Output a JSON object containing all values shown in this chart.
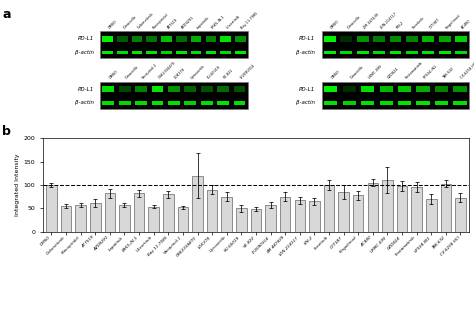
{
  "bar_labels": [
    "DMSO",
    "Cobimetinib",
    "Flavopiridol",
    "AT7519",
    "AZD9291",
    "Lapatinib",
    "ERK5-IN-1",
    "Ulixertinib",
    "Bay 11-7085",
    "Vacquinol-1",
    "GSK2334470",
    "LDK378",
    "Uprosertib",
    "KU-60019",
    "VE-822",
    "LY2090314",
    "ZM 447439",
    "LDN-214117",
    "FIN-2",
    "Foretinib",
    "CYT387",
    "Fingolimod",
    "AC480",
    "URMC-099",
    "GZD824",
    "Fostamatinib",
    "VPS34-IN1",
    "TAK-632",
    "CX-6258 HCl"
  ],
  "bar_values": [
    100,
    55,
    58,
    62,
    82,
    57,
    82,
    54,
    80,
    52,
    120,
    90,
    75,
    50,
    48,
    57,
    75,
    67,
    65,
    100,
    85,
    78,
    105,
    110,
    98,
    95,
    70,
    103,
    73
  ],
  "bar_errors": [
    4,
    5,
    4,
    8,
    9,
    5,
    7,
    4,
    7,
    4,
    48,
    10,
    10,
    7,
    4,
    7,
    9,
    7,
    7,
    11,
    14,
    9,
    7,
    28,
    11,
    11,
    11,
    7,
    9
  ],
  "bar_color": "#d8d8d8",
  "bar_edge_color": "#444444",
  "dashed_line_y": 100,
  "ylabel": "Integrated Intensity",
  "ylim": [
    0,
    200
  ],
  "yticks": [
    0,
    50,
    100,
    150,
    200
  ],
  "panel_label_a": "a",
  "panel_label_b": "b",
  "panels": [
    {
      "drugs": [
        "DMSO",
        "Dinaciclib",
        "Cobimetinib",
        "Flavopiridol",
        "AT7519",
        "AZD9291",
        "Lapatinib",
        "ERK5-IN-1",
        "Ulixertinib",
        "Bay 11-7085"
      ],
      "pdl1": [
        0.95,
        0.35,
        0.5,
        0.45,
        0.75,
        0.42,
        0.68,
        0.52,
        0.9,
        0.58
      ]
    },
    {
      "drugs": [
        "DMSO",
        "Dinaciclib",
        "ZM 447439",
        "LDN-214117",
        "FIN-2",
        "Foretinib",
        "CYT387",
        "Fingolimod",
        "AC480"
      ],
      "pdl1": [
        0.95,
        0.18,
        0.58,
        0.48,
        0.55,
        0.52,
        0.72,
        0.65,
        0.82
      ]
    },
    {
      "drugs": [
        "DMSO",
        "Dinaciclib",
        "Vacquinol-1",
        "GSK2334470",
        "LDK378",
        "Uprosertib",
        "KU-60019",
        "VE-822",
        "LY2090314"
      ],
      "pdl1": [
        0.88,
        0.28,
        0.52,
        0.92,
        0.58,
        0.38,
        0.32,
        0.42,
        0.32
      ]
    },
    {
      "drugs": [
        "DMSO",
        "Dinaciclib",
        "URMC-099",
        "GZD824",
        "Fostamatinib",
        "VPS34-IN1",
        "TAK-632",
        "CX-6258 HCl"
      ],
      "pdl1": [
        0.95,
        0.18,
        0.88,
        0.72,
        0.78,
        0.68,
        0.52,
        0.58
      ]
    }
  ]
}
